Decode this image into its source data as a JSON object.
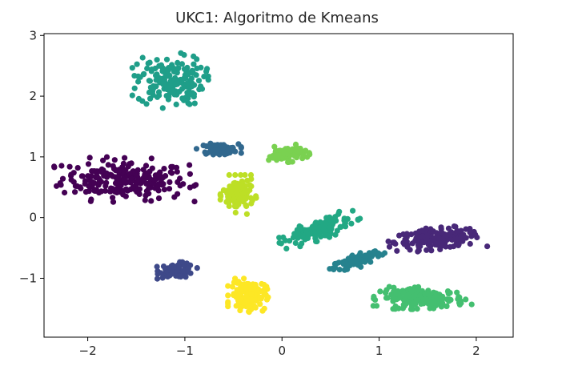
{
  "chart_data": {
    "type": "scatter",
    "title": "UKC1: Algoritmo de Kmeans",
    "xlabel": "",
    "ylabel": "",
    "xlim": [
      -2.45,
      2.38
    ],
    "ylim": [
      -1.97,
      3.03
    ],
    "xticks": [
      -2,
      -1,
      0,
      1,
      2
    ],
    "yticks": [
      -1,
      0,
      1,
      2,
      3
    ],
    "x_tick_labels": [
      "−2",
      "−1",
      "0",
      "1",
      "2"
    ],
    "y_tick_labels": [
      "−1",
      "0",
      "1",
      "2",
      "3"
    ],
    "grid": false,
    "legend": "none",
    "clusters": [
      {
        "color": "#440154",
        "cx": -1.62,
        "cy": 0.62,
        "sx": 0.32,
        "sy": 0.16,
        "rot": -0.05,
        "n": 240,
        "extent": "x: -2.25..-0.95, y: 0.05..0.95"
      },
      {
        "color": "#482878",
        "cx": 1.6,
        "cy": -0.35,
        "sx": 0.22,
        "sy": 0.08,
        "rot": 0.12,
        "n": 180,
        "extent": "x: 1.2..2.1, y: -0.6..0.0"
      },
      {
        "color": "#3e4989",
        "cx": -1.08,
        "cy": -0.87,
        "sx": 0.09,
        "sy": 0.06,
        "rot": 0.0,
        "n": 80,
        "extent": "x: -1.3..-0.85, y: -1.05..-0.65"
      },
      {
        "color": "#31688e",
        "cx": -0.65,
        "cy": 1.13,
        "sx": 0.1,
        "sy": 0.04,
        "rot": 0.0,
        "n": 90,
        "extent": "x: -0.95..-0.4, y: 0.95..1.25"
      },
      {
        "color": "#26828e",
        "cx": 0.78,
        "cy": -0.7,
        "sx": 0.14,
        "sy": 0.05,
        "rot": 0.5,
        "n": 100,
        "extent": "x: 0.45..1.1, y: -0.95..-0.45"
      },
      {
        "color": "#1f9e89",
        "cx": -1.15,
        "cy": 2.25,
        "sx": 0.17,
        "sy": 0.2,
        "rot": 0.0,
        "n": 170,
        "extent": "x: -1.55..-0.6, y: 1.7..2.8"
      },
      {
        "color": "#22a884",
        "cx": 0.38,
        "cy": -0.2,
        "sx": 0.2,
        "sy": 0.07,
        "rot": 0.55,
        "n": 130,
        "extent": "x: 0.05..0.65, y: -0.55..0.15"
      },
      {
        "color": "#44bf70",
        "cx": 1.45,
        "cy": -1.33,
        "sx": 0.22,
        "sy": 0.08,
        "rot": -0.03,
        "n": 170,
        "extent": "x: 0.95..1.95, y: -1.65..-1.05"
      },
      {
        "color": "#7ad151",
        "cx": 0.05,
        "cy": 1.05,
        "sx": 0.1,
        "sy": 0.06,
        "rot": 0.15,
        "n": 90,
        "extent": "x: -0.2..0.35, y: 0.85..1.25"
      },
      {
        "color": "#bddf26",
        "cx": -0.45,
        "cy": 0.38,
        "sx": 0.08,
        "sy": 0.14,
        "rot": 0.0,
        "n": 110,
        "extent": "x: -0.7..-0.1, y: -0.1..0.75"
      },
      {
        "color": "#fde725",
        "cx": -0.35,
        "cy": -1.28,
        "sx": 0.09,
        "sy": 0.12,
        "rot": 0.0,
        "n": 150,
        "extent": "x: -0.65..-0.05, y: -1.65..-0.9"
      }
    ]
  }
}
